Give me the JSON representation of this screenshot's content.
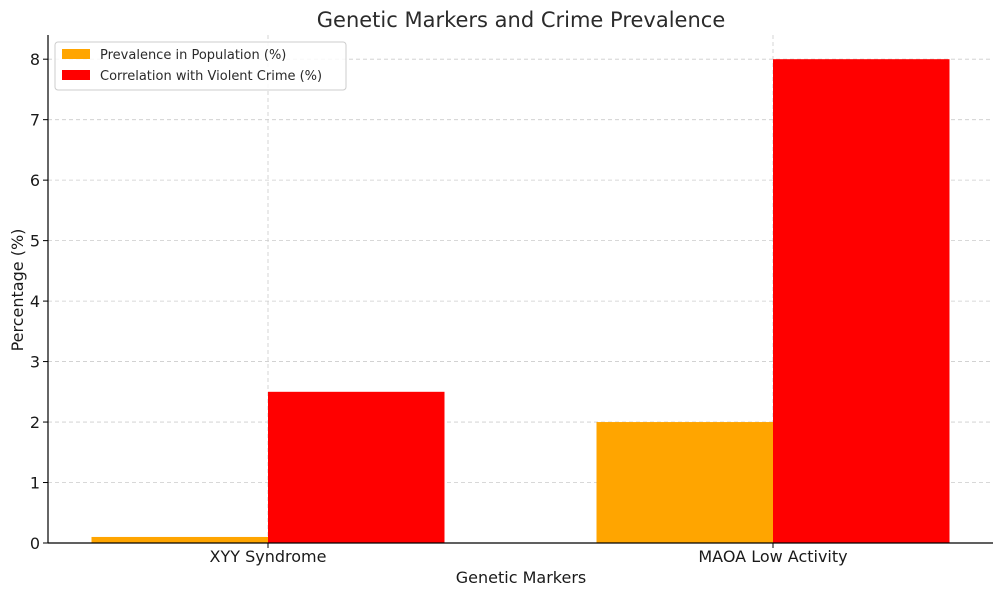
{
  "chart_data": {
    "type": "bar",
    "title": "Genetic Markers and Crime Prevalence",
    "xlabel": "Genetic Markers",
    "ylabel": "Percentage (%)",
    "categories": [
      "XYY Syndrome",
      "MAOA Low Activity"
    ],
    "series": [
      {
        "name": "Prevalence in Population (%)",
        "values": [
          0.1,
          2
        ],
        "color": "#ffa500"
      },
      {
        "name": "Correlation with Violent Crime (%)",
        "values": [
          2.5,
          8
        ],
        "color": "#ff0000"
      }
    ],
    "ylim": [
      0,
      8.4
    ],
    "yticks": [
      "0",
      "1",
      "2",
      "3",
      "4",
      "5",
      "6",
      "7",
      "8"
    ],
    "grid": true,
    "legend_position": "top-left"
  }
}
